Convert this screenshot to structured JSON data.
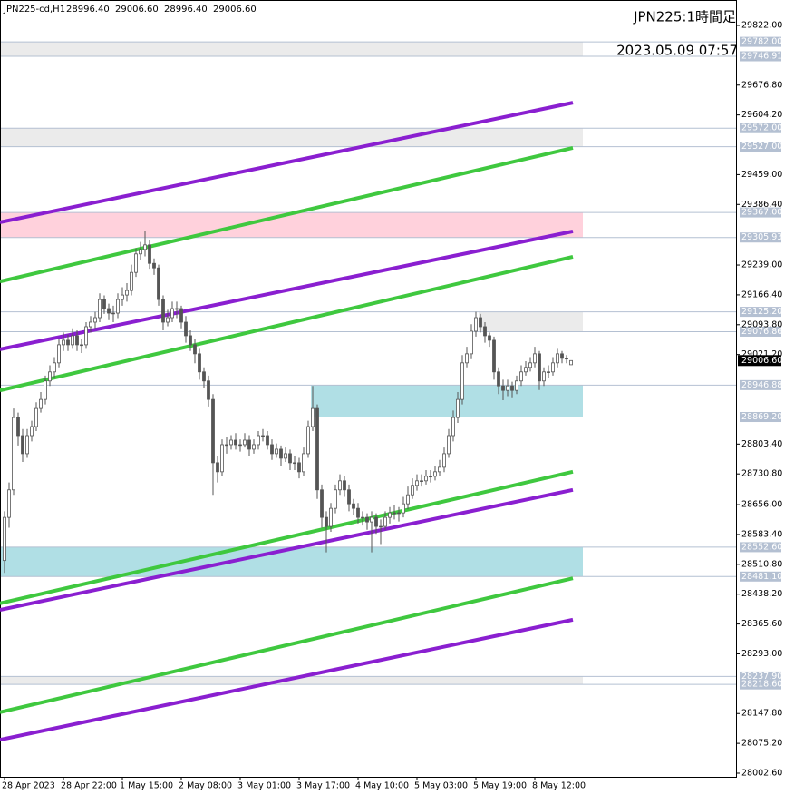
{
  "chart_data": {
    "type": "candlestick",
    "symbol_info": "JPN225-cd,H1",
    "ohlc_info": [
      "28996.40",
      "29006.60",
      "28996.40",
      "29006.60"
    ],
    "title": "JPN225:1時間足",
    "timestamp": "2023.05.09 07:57",
    "ylim": [
      28002.6,
      29822
    ],
    "yticks": [
      {
        "value": 29822,
        "label": "29822.00"
      },
      {
        "value": 29676.8,
        "label": "29676.80"
      },
      {
        "value": 29604.2,
        "label": "29604.20"
      },
      {
        "value": 29459,
        "label": "29459.00"
      },
      {
        "value": 29386.4,
        "label": "29386.40"
      },
      {
        "value": 29239,
        "label": "29239.00"
      },
      {
        "value": 29166.4,
        "label": "29166.40"
      },
      {
        "value": 29093.8,
        "label": "29093.80"
      },
      {
        "value": 29021.2,
        "label": "29021.20"
      },
      {
        "value": 28803.4,
        "label": "28803.40"
      },
      {
        "value": 28730.8,
        "label": "28730.80"
      },
      {
        "value": 28656,
        "label": "28656.00"
      },
      {
        "value": 28583.4,
        "label": "28583.40"
      },
      {
        "value": 28510.8,
        "label": "28510.80"
      },
      {
        "value": 28438.2,
        "label": "28438.20"
      },
      {
        "value": 28365.6,
        "label": "28365.60"
      },
      {
        "value": 28293,
        "label": "28293.00"
      },
      {
        "value": 28147.8,
        "label": "28147.80"
      },
      {
        "value": 28075.2,
        "label": "28075.20"
      },
      {
        "value": 28002.6,
        "label": "28002.60"
      }
    ],
    "x_labels": [
      "28 Apr 2023",
      "28 Apr 22:00",
      "1 May 15:00",
      "2 May 08:00",
      "3 May 01:00",
      "3 May 17:00",
      "4 May 10:00",
      "5 May 03:00",
      "5 May 19:00",
      "8 May 12:00"
    ],
    "levels": [
      {
        "value": 29782,
        "label": "29782.00"
      },
      {
        "value": 29746.91,
        "label": "29746.91"
      },
      {
        "value": 29572,
        "label": "29572.00"
      },
      {
        "value": 29527,
        "label": "29527.00"
      },
      {
        "value": 29367,
        "label": "29367.00"
      },
      {
        "value": 29305.93,
        "label": "29305.93"
      },
      {
        "value": 29125.2,
        "label": "29125.20"
      },
      {
        "value": 29076.86,
        "label": "29076.86"
      },
      {
        "value": 28946.88,
        "label": "28946.88"
      },
      {
        "value": 28869.2,
        "label": "28869.20"
      },
      {
        "value": 28552.6,
        "label": "28552.60"
      },
      {
        "value": 28481.1,
        "label": "28481.10"
      },
      {
        "value": 28237.9,
        "label": "28237.90"
      },
      {
        "value": 28218.6,
        "label": "28218.60"
      }
    ],
    "zones": [
      {
        "color": "#ebebeb",
        "range": [
          29782,
          29746.91
        ]
      },
      {
        "color": "#ebebeb",
        "range": [
          29572,
          29527
        ]
      },
      {
        "color": "#ffd1dc",
        "range": [
          29367,
          29305.93
        ]
      },
      {
        "color": "#ebebeb",
        "range": [
          29125.2,
          29076.86
        ]
      },
      {
        "color": "#b0dfe5",
        "range": [
          28946.88,
          28869.2
        ]
      },
      {
        "color": "#b0dfe5",
        "range": [
          28552.6,
          28481.1
        ]
      },
      {
        "color": "#ebebeb",
        "range": [
          28237.9,
          28218.6
        ]
      }
    ],
    "trendlines": [
      {
        "color": "#8a1fd0",
        "values": [
          29343,
          29634
        ]
      },
      {
        "color": "#3fc83f",
        "values": [
          29199,
          29524
        ]
      },
      {
        "color": "#8a1fd0",
        "values": [
          29034,
          29321
        ]
      },
      {
        "color": "#3fc83f",
        "values": [
          28934,
          29259
        ]
      },
      {
        "color": "#3fc83f",
        "values": [
          28416,
          28736
        ]
      },
      {
        "color": "#8a1fd0",
        "values": [
          28400,
          28692
        ]
      },
      {
        "color": "#3fc83f",
        "values": [
          28151,
          28477
        ]
      },
      {
        "color": "#8a1fd0",
        "values": [
          28084,
          28376
        ]
      }
    ],
    "price_label": {
      "value": 29006.6,
      "label": "29006.60"
    },
    "candles": [
      [
        28520,
        28640,
        28490,
        28625
      ],
      [
        28625,
        28710,
        28600,
        28692
      ],
      [
        28692,
        28890,
        28680,
        28868
      ],
      [
        28868,
        28880,
        28800,
        28824
      ],
      [
        28824,
        28840,
        28760,
        28780
      ],
      [
        28780,
        28840,
        28770,
        28824
      ],
      [
        28824,
        28860,
        28810,
        28846
      ],
      [
        28846,
        28905,
        28835,
        28890
      ],
      [
        28890,
        28930,
        28880,
        28912
      ],
      [
        28912,
        28970,
        28900,
        28957
      ],
      [
        28957,
        28995,
        28945,
        28979
      ],
      [
        28979,
        29015,
        28965,
        29001
      ],
      [
        29001,
        29060,
        28990,
        29045
      ],
      [
        29045,
        29075,
        29030,
        29056
      ],
      [
        29056,
        29070,
        29030,
        29045
      ],
      [
        29045,
        29085,
        29035,
        29067
      ],
      [
        29067,
        29080,
        29030,
        29045
      ],
      [
        29045,
        29060,
        29025,
        29045
      ],
      [
        29045,
        29100,
        29035,
        29089
      ],
      [
        29089,
        29115,
        29075,
        29100
      ],
      [
        29100,
        29125,
        29085,
        29111
      ],
      [
        29111,
        29170,
        29100,
        29155
      ],
      [
        29155,
        29165,
        29120,
        29133
      ],
      [
        29133,
        29145,
        29105,
        29122
      ],
      [
        29122,
        29140,
        29100,
        29122
      ],
      [
        29122,
        29170,
        29110,
        29155
      ],
      [
        29155,
        29185,
        29140,
        29166
      ],
      [
        29166,
        29195,
        29150,
        29177
      ],
      [
        29177,
        29240,
        29165,
        29221
      ],
      [
        29221,
        29280,
        29210,
        29266
      ],
      [
        29266,
        29295,
        29250,
        29277
      ],
      [
        29277,
        29321,
        29260,
        29288
      ],
      [
        29288,
        29300,
        29230,
        29243
      ],
      [
        29243,
        29255,
        29215,
        29232
      ],
      [
        29232,
        29240,
        29140,
        29155
      ],
      [
        29155,
        29165,
        29080,
        29100
      ],
      [
        29100,
        29130,
        29090,
        29111
      ],
      [
        29111,
        29150,
        29100,
        29133
      ],
      [
        29133,
        29150,
        29110,
        29133
      ],
      [
        29133,
        29140,
        29085,
        29100
      ],
      [
        29100,
        29115,
        29050,
        29067
      ],
      [
        29067,
        29080,
        29030,
        29045
      ],
      [
        29045,
        29060,
        29000,
        29023
      ],
      [
        29023,
        29035,
        28960,
        28979
      ],
      [
        28979,
        28990,
        28940,
        28957
      ],
      [
        28957,
        28970,
        28895,
        28912
      ],
      [
        28912,
        28925,
        28680,
        28758
      ],
      [
        28758,
        28775,
        28710,
        28736
      ],
      [
        28736,
        28815,
        28725,
        28802
      ],
      [
        28802,
        28820,
        28780,
        28802
      ],
      [
        28802,
        28825,
        28790,
        28813
      ],
      [
        28813,
        28830,
        28790,
        28802
      ],
      [
        28802,
        28815,
        28785,
        28802
      ],
      [
        28802,
        28830,
        28795,
        28813
      ],
      [
        28813,
        28825,
        28775,
        28791
      ],
      [
        28791,
        28815,
        28780,
        28802
      ],
      [
        28802,
        28835,
        28790,
        28824
      ],
      [
        28824,
        28840,
        28810,
        28824
      ],
      [
        28824,
        28835,
        28790,
        28802
      ],
      [
        28802,
        28815,
        28765,
        28780
      ],
      [
        28780,
        28805,
        28770,
        28791
      ],
      [
        28791,
        28800,
        28750,
        28769
      ],
      [
        28769,
        28795,
        28760,
        28780
      ],
      [
        28780,
        28790,
        28740,
        28758
      ],
      [
        28758,
        28775,
        28740,
        28758
      ],
      [
        28758,
        28770,
        28720,
        28736
      ],
      [
        28736,
        28795,
        28725,
        28780
      ],
      [
        28780,
        28860,
        28770,
        28846
      ],
      [
        28846,
        28945,
        28835,
        28890
      ],
      [
        28890,
        28900,
        28670,
        28692
      ],
      [
        28692,
        28705,
        28600,
        28625
      ],
      [
        28625,
        28640,
        28540,
        28603
      ],
      [
        28603,
        28660,
        28590,
        28647
      ],
      [
        28647,
        28705,
        28635,
        28692
      ],
      [
        28692,
        28730,
        28680,
        28714
      ],
      [
        28714,
        28725,
        28675,
        28692
      ],
      [
        28692,
        28705,
        28640,
        28658
      ],
      [
        28658,
        28670,
        28630,
        28647
      ],
      [
        28647,
        28660,
        28610,
        28625
      ],
      [
        28625,
        28640,
        28605,
        28625
      ],
      [
        28625,
        28635,
        28595,
        28614
      ],
      [
        28614,
        28640,
        28540,
        28625
      ],
      [
        28625,
        28635,
        28585,
        28603
      ],
      [
        28603,
        28620,
        28560,
        28603
      ],
      [
        28603,
        28640,
        28595,
        28625
      ],
      [
        28625,
        28650,
        28610,
        28636
      ],
      [
        28636,
        28655,
        28620,
        28636
      ],
      [
        28636,
        28650,
        28615,
        28636
      ],
      [
        28636,
        28675,
        28625,
        28658
      ],
      [
        28658,
        28700,
        28645,
        28680
      ],
      [
        28680,
        28720,
        28670,
        28703
      ],
      [
        28703,
        28730,
        28690,
        28714
      ],
      [
        28714,
        28730,
        28700,
        28714
      ],
      [
        28714,
        28740,
        28705,
        28725
      ],
      [
        28725,
        28740,
        28710,
        28725
      ],
      [
        28725,
        28750,
        28715,
        28736
      ],
      [
        28736,
        28765,
        28725,
        28747
      ],
      [
        28747,
        28795,
        28735,
        28780
      ],
      [
        28780,
        28840,
        28770,
        28824
      ],
      [
        28824,
        28885,
        28810,
        28868
      ],
      [
        28868,
        28930,
        28855,
        28912
      ],
      [
        28912,
        29020,
        28900,
        29001
      ],
      [
        29001,
        29040,
        28990,
        29023
      ],
      [
        29023,
        29095,
        29010,
        29078
      ],
      [
        29078,
        29125,
        29065,
        29111
      ],
      [
        29111,
        29120,
        29075,
        29089
      ],
      [
        29089,
        29100,
        29050,
        29067
      ],
      [
        29067,
        29075,
        29040,
        29056
      ],
      [
        29056,
        29065,
        28960,
        28979
      ],
      [
        28979,
        28990,
        28925,
        28945
      ],
      [
        28945,
        28960,
        28910,
        28934
      ],
      [
        28934,
        28960,
        28920,
        28945
      ],
      [
        28945,
        28955,
        28915,
        28934
      ],
      [
        28934,
        28970,
        28925,
        28957
      ],
      [
        28957,
        28995,
        28945,
        28979
      ],
      [
        28979,
        29005,
        28970,
        28990
      ],
      [
        28990,
        29015,
        28980,
        29001
      ],
      [
        29001,
        29040,
        28990,
        29023
      ],
      [
        29023,
        29030,
        28935,
        28957
      ],
      [
        28957,
        28990,
        28945,
        28979
      ],
      [
        28979,
        28995,
        28965,
        28979
      ],
      [
        28979,
        29015,
        28970,
        29001
      ],
      [
        29001,
        29035,
        28990,
        29023
      ],
      [
        29023,
        29030,
        29000,
        29012
      ],
      [
        29012,
        29020,
        29000,
        29012
      ],
      [
        28996.4,
        29006.6,
        28996.4,
        29006.6
      ]
    ]
  }
}
